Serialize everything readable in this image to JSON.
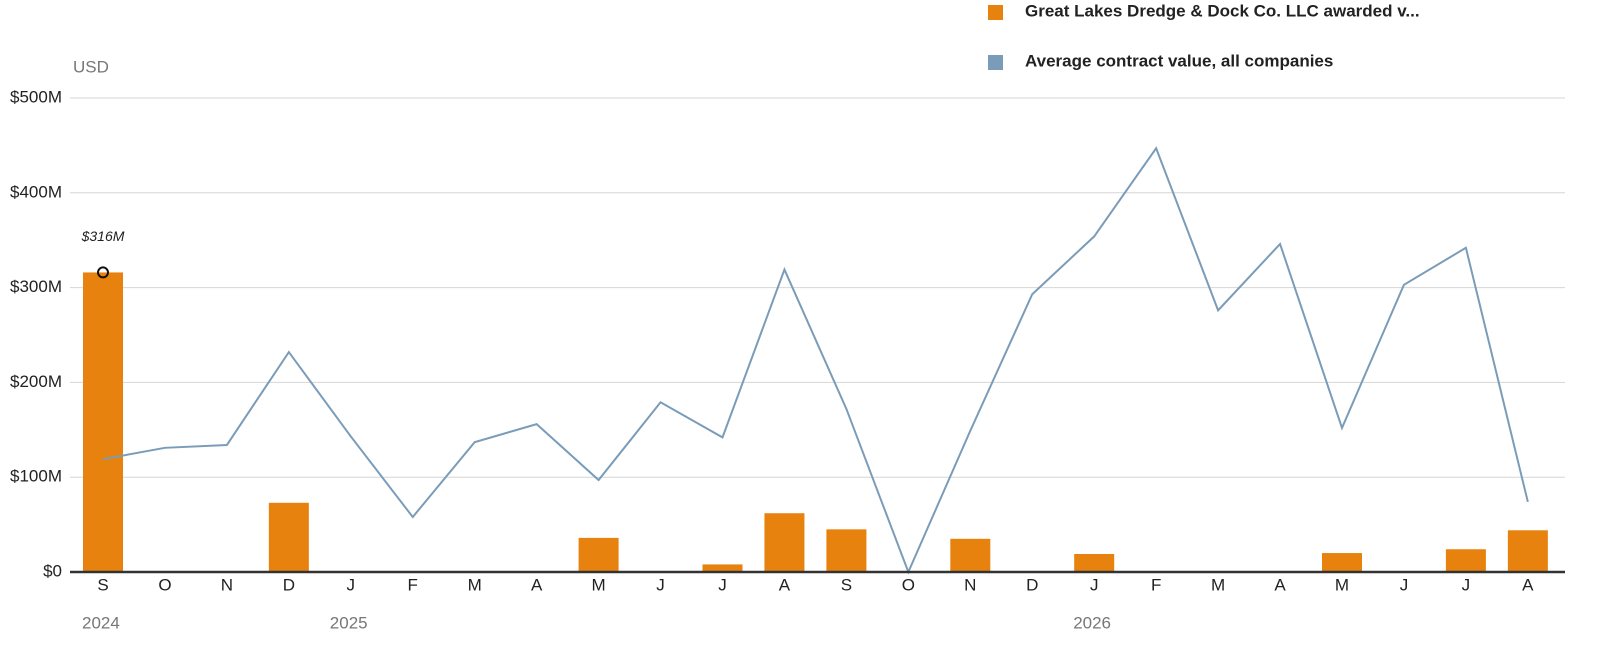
{
  "chart_data": {
    "type": "bar",
    "y_label": "USD",
    "categories": [
      "S",
      "O",
      "N",
      "D",
      "J",
      "F",
      "M",
      "A",
      "M",
      "J",
      "J",
      "A",
      "S",
      "O",
      "N",
      "D",
      "J",
      "F",
      "M",
      "A",
      "M",
      "J",
      "J",
      "A"
    ],
    "years": [
      "2024",
      null,
      null,
      null,
      "2025",
      null,
      null,
      null,
      null,
      null,
      null,
      null,
      null,
      null,
      null,
      null,
      "2026",
      null,
      null,
      null,
      null,
      null,
      null,
      null
    ],
    "series": [
      {
        "name": "Great Lakes Dredge & Dock Co. LLC awarded v...",
        "type": "bar",
        "color": "#e8820e",
        "values": [
          316,
          0,
          0,
          73,
          0,
          0,
          0,
          0,
          36,
          0,
          8,
          62,
          45,
          0,
          35,
          0,
          19,
          0,
          0,
          0,
          20,
          0,
          24,
          44
        ]
      },
      {
        "name": "Average contract value, all companies",
        "type": "line",
        "color": "#7a9cb8",
        "values": [
          119,
          131,
          134,
          232,
          143,
          58,
          137,
          156,
          97,
          179,
          142,
          319,
          172,
          0,
          149,
          293,
          354,
          447,
          276,
          346,
          152,
          303,
          342,
          74
        ]
      }
    ],
    "annotation": "$316M",
    "ylim": [
      0,
      500
    ],
    "yticks": [
      {
        "value": 0,
        "label": "$0"
      },
      {
        "value": 100,
        "label": "$100M"
      },
      {
        "value": 200,
        "label": "$200M"
      },
      {
        "value": 300,
        "label": "$300M"
      },
      {
        "value": 400,
        "label": "$400M"
      },
      {
        "value": 500,
        "label": "$500M"
      }
    ],
    "grid": true
  }
}
